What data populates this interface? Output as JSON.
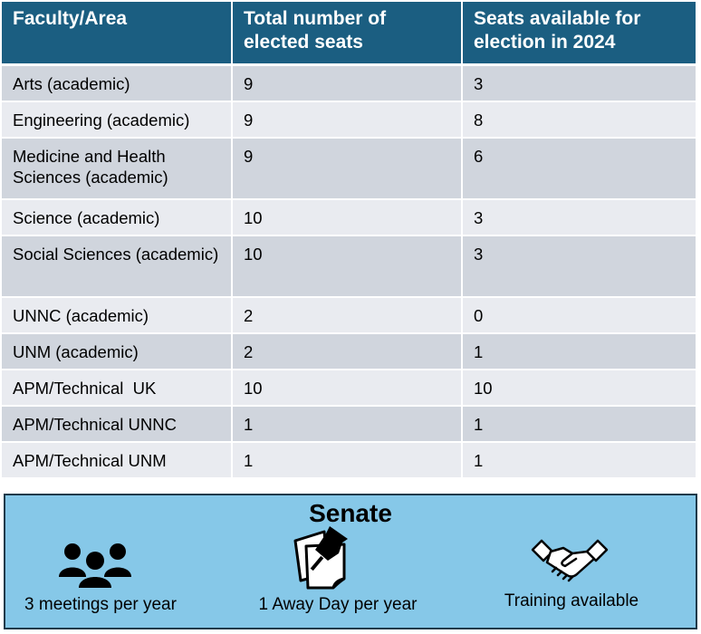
{
  "table": {
    "headers": [
      "Faculty/Area",
      "Total number of elected seats",
      "Seats available for election in 2024"
    ],
    "rows": [
      {
        "area": "Arts (academic)",
        "total": "9",
        "available": "3"
      },
      {
        "area": "Engineering (academic)",
        "total": "9",
        "available": "8"
      },
      {
        "area": "Medicine and Health Sciences (academic)",
        "total": "9",
        "available": "6"
      },
      {
        "area": "Science (academic)",
        "total": "10",
        "available": "3"
      },
      {
        "area": "Social Sciences (academic)",
        "total": "10",
        "available": "3"
      },
      {
        "area": "UNNC (academic)",
        "total": "2",
        "available": "0"
      },
      {
        "area": "UNM (academic)",
        "total": "2",
        "available": "1"
      },
      {
        "area": "APM/Technical  UK",
        "total": "10",
        "available": "10"
      },
      {
        "area": "APM/Technical UNNC",
        "total": "1",
        "available": "1"
      },
      {
        "area": "APM/Technical UNM",
        "total": "1",
        "available": "1"
      }
    ]
  },
  "senate": {
    "title": "Senate",
    "features": [
      {
        "label": "3 meetings per year",
        "icon": "group-icon"
      },
      {
        "label": "1 Away Day per year",
        "icon": "pinned-notes-icon"
      },
      {
        "label": "Training available",
        "icon": "handshake-icon"
      }
    ]
  },
  "colors": {
    "header_bg": "#1b5e81",
    "row_dark": "#d0d5dd",
    "row_light": "#e9ebf0",
    "panel_bg": "#86c8e8"
  }
}
